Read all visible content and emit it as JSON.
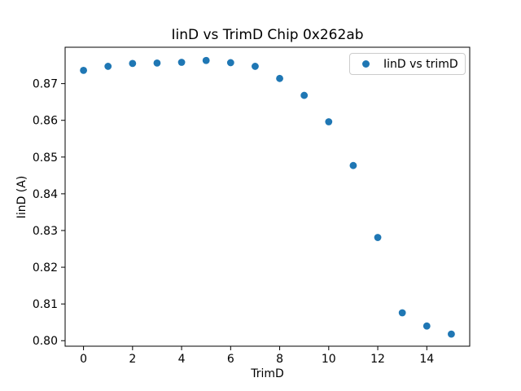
{
  "chart_data": {
    "type": "scatter",
    "title": "IinD vs TrimD Chip 0x262ab",
    "xlabel": "TrimD",
    "ylabel": "IinD (A)",
    "legend": {
      "position": "upper right",
      "entries": [
        {
          "label": "IinD vs trimD",
          "marker": "circle",
          "color": "#1f77b4"
        }
      ]
    },
    "x": [
      0,
      1,
      2,
      3,
      4,
      5,
      6,
      7,
      8,
      9,
      10,
      11,
      12,
      13,
      14,
      15
    ],
    "y": [
      0.8736,
      0.8747,
      0.8755,
      0.8756,
      0.8758,
      0.8763,
      0.8757,
      0.8747,
      0.8714,
      0.8668,
      0.8596,
      0.8477,
      0.8281,
      0.8076,
      0.804,
      0.8018
    ],
    "xlim": [
      -0.75,
      15.75
    ],
    "ylim": [
      0.7985,
      0.8799
    ],
    "x_tick_values": [
      0,
      2,
      4,
      6,
      8,
      10,
      12,
      14
    ],
    "x_tick_labels": [
      "0",
      "2",
      "4",
      "6",
      "8",
      "10",
      "12",
      "14"
    ],
    "y_tick_values": [
      0.8,
      0.81,
      0.82,
      0.83,
      0.84,
      0.85,
      0.86,
      0.87
    ],
    "y_tick_labels": [
      "0.80",
      "0.81",
      "0.82",
      "0.83",
      "0.84",
      "0.85",
      "0.86",
      "0.87"
    ],
    "grid": false,
    "marker_color": "#1f77b4",
    "axis_color": "#000000",
    "tick_label_color": "#000000",
    "background": "#ffffff"
  }
}
